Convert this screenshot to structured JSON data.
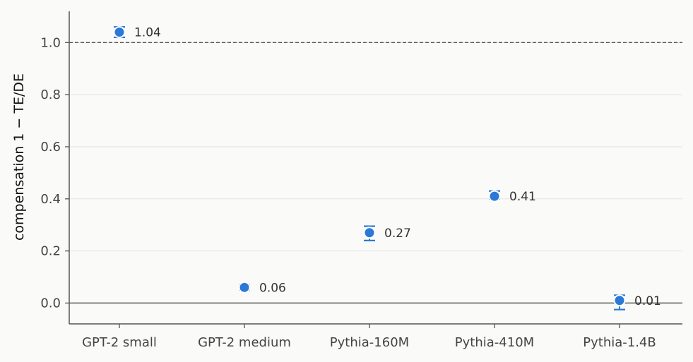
{
  "chart_data": {
    "type": "scatter",
    "title": "",
    "xlabel": "",
    "ylabel": "compensation 1 − TE/DE",
    "categories": [
      "GPT-2 small",
      "GPT-2 medium",
      "Pythia-160M",
      "Pythia-410M",
      "Pythia-1.4B"
    ],
    "series": [
      {
        "values": [
          1.04,
          0.06,
          0.27,
          0.41,
          0.01
        ],
        "err_low": [
          1.02,
          0.05,
          0.24,
          0.4,
          -0.025
        ],
        "err_high": [
          1.06,
          0.07,
          0.295,
          0.43,
          0.03
        ],
        "labels": [
          "1.04",
          "0.06",
          "0.27",
          "0.41",
          "0.01"
        ]
      }
    ],
    "ylim": [
      -0.08,
      1.12
    ],
    "yticks": [
      0.0,
      0.2,
      0.4,
      0.6,
      0.8,
      1.0
    ],
    "ytick_labels": [
      "0.0",
      "0.2",
      "0.4",
      "0.6",
      "0.8",
      "1.0"
    ],
    "reference_lines": [
      {
        "y": 1.0,
        "style": "dashed"
      },
      {
        "y": 0.0,
        "style": "solid"
      }
    ],
    "grid": true,
    "legend": "none",
    "colors": {
      "point": "#2b78d6",
      "errorbar": "#2b78d6",
      "grid": "#e3e3e3",
      "axis": "#555555"
    }
  }
}
